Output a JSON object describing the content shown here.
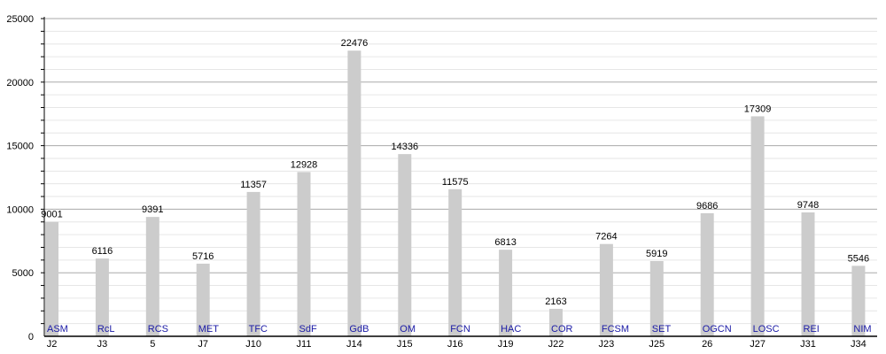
{
  "chart_data": {
    "type": "bar",
    "categories": [
      "J2",
      "J3",
      "5",
      "J7",
      "J10",
      "J11",
      "J14",
      "J15",
      "J16",
      "J19",
      "J22",
      "J23",
      "J25",
      "26",
      "J27",
      "J31",
      "J34"
    ],
    "bar_labels": [
      "ASM",
      "RcL",
      "RCS",
      "MET",
      "TFC",
      "SdF",
      "GdB",
      "OM",
      "FCN",
      "HAC",
      "COR",
      "FCSM",
      "SET",
      "OGCN",
      "LOSC",
      "REI",
      "NIM"
    ],
    "values": [
      9001,
      6116,
      9391,
      5716,
      11357,
      12928,
      22476,
      14336,
      11575,
      6813,
      2163,
      7264,
      5919,
      9686,
      17309,
      9748,
      5546
    ],
    "ylim": [
      0,
      25000
    ],
    "yticks": [
      0,
      5000,
      10000,
      15000,
      20000,
      25000
    ],
    "grid": true,
    "bar_color": "#cccccc",
    "bar_label_color": "#1a1aa6"
  }
}
